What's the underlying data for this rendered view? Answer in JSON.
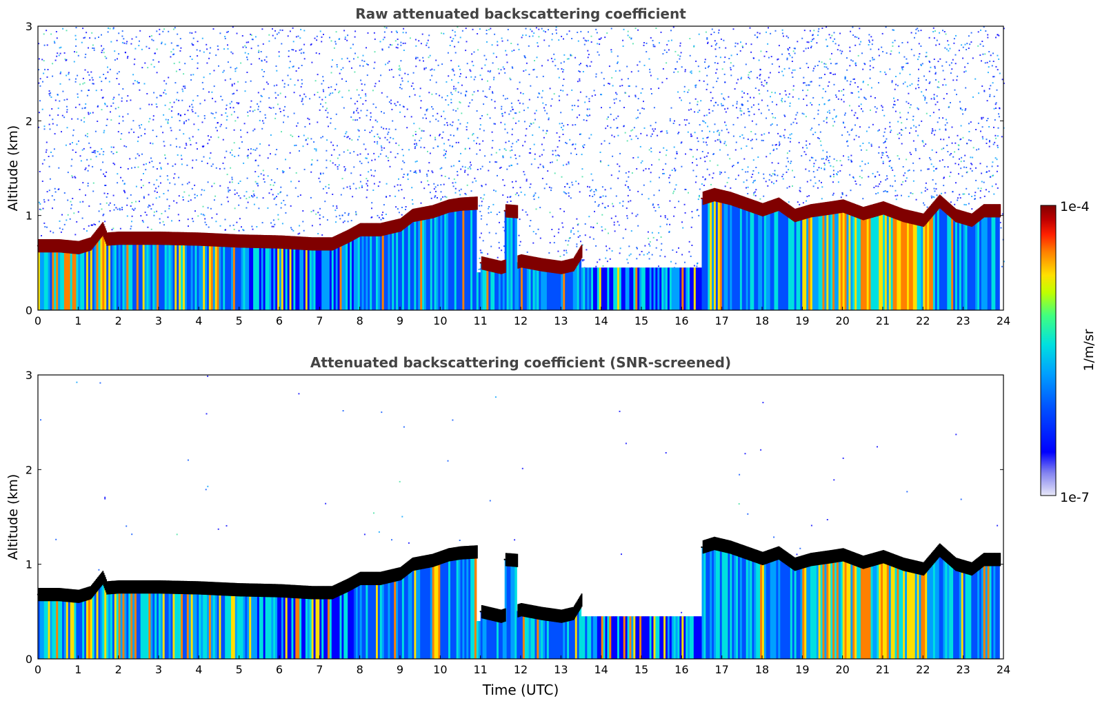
{
  "chart_data": [
    {
      "type": "heatmap",
      "title": "Raw attenuated backscattering coefficient",
      "xlabel": "",
      "ylabel": "Altitude (km)",
      "xlim": [
        0,
        24
      ],
      "ylim": [
        0,
        3
      ],
      "x_ticks": [
        "0",
        "1",
        "2",
        "3",
        "4",
        "5",
        "6",
        "7",
        "8",
        "9",
        "10",
        "11",
        "12",
        "13",
        "14",
        "15",
        "16",
        "17",
        "18",
        "19",
        "20",
        "21",
        "22",
        "23",
        "24"
      ],
      "y_ticks": [
        "0",
        "1",
        "2",
        "3"
      ],
      "screened": false,
      "cloud_base_km": [
        [
          0.0,
          0.68
        ],
        [
          0.5,
          0.68
        ],
        [
          1.0,
          0.66
        ],
        [
          1.3,
          0.7
        ],
        [
          1.6,
          0.86
        ],
        [
          1.7,
          0.75
        ],
        [
          2.0,
          0.76
        ],
        [
          3.0,
          0.76
        ],
        [
          4.0,
          0.75
        ],
        [
          5.0,
          0.73
        ],
        [
          6.0,
          0.72
        ],
        [
          6.8,
          0.7
        ],
        [
          7.3,
          0.7
        ],
        [
          7.7,
          0.78
        ],
        [
          8.0,
          0.85
        ],
        [
          8.5,
          0.85
        ],
        [
          9.0,
          0.9
        ],
        [
          9.3,
          1.0
        ],
        [
          9.8,
          1.04
        ],
        [
          10.2,
          1.1
        ],
        [
          10.5,
          1.12
        ],
        [
          10.9,
          1.13
        ],
        [
          11.6,
          1.05
        ],
        [
          11.9,
          1.04
        ],
        [
          11.0,
          0.5
        ],
        [
          11.5,
          0.45
        ],
        [
          12.0,
          0.52
        ],
        [
          12.5,
          0.48
        ],
        [
          13.0,
          0.45
        ],
        [
          13.3,
          0.48
        ],
        [
          13.5,
          0.62
        ],
        [
          16.5,
          1.18
        ],
        [
          16.8,
          1.22
        ],
        [
          17.2,
          1.18
        ],
        [
          17.6,
          1.12
        ],
        [
          18.0,
          1.06
        ],
        [
          18.4,
          1.12
        ],
        [
          18.8,
          1.0
        ],
        [
          19.2,
          1.05
        ],
        [
          19.7,
          1.08
        ],
        [
          20.0,
          1.1
        ],
        [
          20.5,
          1.02
        ],
        [
          21.0,
          1.08
        ],
        [
          21.5,
          1.0
        ],
        [
          22.0,
          0.95
        ],
        [
          22.4,
          1.15
        ],
        [
          22.8,
          1.0
        ],
        [
          23.2,
          0.95
        ],
        [
          23.5,
          1.05
        ],
        [
          23.9,
          1.05
        ]
      ]
    },
    {
      "type": "heatmap",
      "title": "Attenuated backscattering coefficient (SNR-screened)",
      "xlabel": "Time (UTC)",
      "ylabel": "Altitude (km)",
      "xlim": [
        0,
        24
      ],
      "ylim": [
        0,
        3
      ],
      "x_ticks": [
        "0",
        "1",
        "2",
        "3",
        "4",
        "5",
        "6",
        "7",
        "8",
        "9",
        "10",
        "11",
        "12",
        "13",
        "14",
        "15",
        "16",
        "17",
        "18",
        "19",
        "20",
        "21",
        "22",
        "23",
        "24"
      ],
      "y_ticks": [
        "0",
        "1",
        "2",
        "3"
      ],
      "screened": true,
      "cloud_base_km": [
        [
          0.0,
          0.68
        ],
        [
          0.5,
          0.68
        ],
        [
          1.0,
          0.66
        ],
        [
          1.3,
          0.7
        ],
        [
          1.6,
          0.86
        ],
        [
          1.7,
          0.75
        ],
        [
          2.0,
          0.76
        ],
        [
          3.0,
          0.76
        ],
        [
          4.0,
          0.75
        ],
        [
          5.0,
          0.73
        ],
        [
          6.0,
          0.72
        ],
        [
          6.8,
          0.7
        ],
        [
          7.3,
          0.7
        ],
        [
          7.7,
          0.78
        ],
        [
          8.0,
          0.85
        ],
        [
          8.5,
          0.85
        ],
        [
          9.0,
          0.9
        ],
        [
          9.3,
          1.0
        ],
        [
          9.8,
          1.04
        ],
        [
          10.2,
          1.1
        ],
        [
          10.5,
          1.12
        ],
        [
          10.9,
          1.13
        ],
        [
          11.6,
          1.05
        ],
        [
          11.9,
          1.04
        ],
        [
          11.0,
          0.5
        ],
        [
          11.5,
          0.45
        ],
        [
          12.0,
          0.52
        ],
        [
          12.5,
          0.48
        ],
        [
          13.0,
          0.45
        ],
        [
          13.3,
          0.48
        ],
        [
          13.5,
          0.62
        ],
        [
          16.5,
          1.18
        ],
        [
          16.8,
          1.22
        ],
        [
          17.2,
          1.18
        ],
        [
          17.6,
          1.12
        ],
        [
          18.0,
          1.06
        ],
        [
          18.4,
          1.12
        ],
        [
          18.8,
          1.0
        ],
        [
          19.2,
          1.05
        ],
        [
          19.7,
          1.08
        ],
        [
          20.0,
          1.1
        ],
        [
          20.5,
          1.02
        ],
        [
          21.0,
          1.08
        ],
        [
          21.5,
          1.0
        ],
        [
          22.0,
          0.95
        ],
        [
          22.4,
          1.15
        ],
        [
          22.8,
          1.0
        ],
        [
          23.2,
          0.95
        ],
        [
          23.5,
          1.05
        ],
        [
          23.9,
          1.05
        ]
      ]
    }
  ],
  "colorbar": {
    "label": "1/m/sr",
    "max_label": "1e-4",
    "min_label": "1e-7",
    "scale": "log",
    "colors": [
      "#e8e8f8",
      "#8080f0",
      "#0000ff",
      "#0050ff",
      "#00a0ff",
      "#00e0e0",
      "#40ff80",
      "#c0ff00",
      "#ffe000",
      "#ff8000",
      "#ff2000",
      "#c00000",
      "#800000"
    ],
    "screened_band_color": "#000000"
  }
}
